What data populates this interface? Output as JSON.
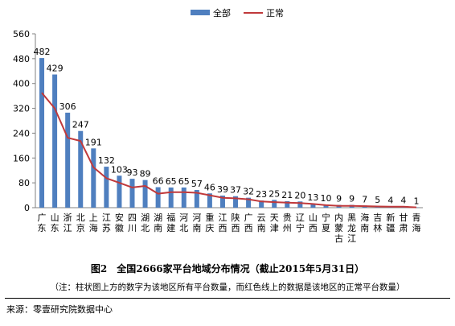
{
  "legend": {
    "bar_label": "全部",
    "line_label": "正常"
  },
  "caption": "图2　全国2666家平台地域分布情况（截止2015年5月31日）",
  "note": "（注：柱状图上方的数字为该地区所有平台数量，而红色线上的数据是该地区的正常平台数量）",
  "source": "来源：零壹研究院数据中心",
  "colors": {
    "bar": "#4f7fbf",
    "line": "#c0393b",
    "grid": "#d9d9d9"
  },
  "chart_data": {
    "type": "bar",
    "categories": [
      "广东",
      "山东",
      "浙江",
      "北京",
      "上海",
      "江苏",
      "安徽",
      "四川",
      "湖北",
      "湖南",
      "福建",
      "河北",
      "河南",
      "重庆",
      "江西",
      "陕西",
      "广西",
      "云南",
      "天津",
      "贵州",
      "辽宁",
      "山西",
      "宁夏",
      "内蒙古",
      "黑龙江",
      "海南",
      "吉林",
      "新疆",
      "甘肃",
      "青海"
    ],
    "series": [
      {
        "name": "全部",
        "type": "bar",
        "values": [
          482,
          429,
          306,
          247,
          191,
          132,
          103,
          93,
          89,
          66,
          65,
          65,
          57,
          46,
          39,
          37,
          32,
          23,
          25,
          21,
          20,
          13,
          10,
          9,
          9,
          7,
          5,
          4,
          4,
          1
        ]
      },
      {
        "name": "正常",
        "type": "line",
        "values": [
          370,
          320,
          225,
          215,
          130,
          95,
          80,
          65,
          70,
          45,
          50,
          50,
          48,
          40,
          32,
          30,
          27,
          20,
          18,
          16,
          15,
          12,
          8,
          6,
          6,
          5,
          4,
          3,
          3,
          1
        ]
      }
    ],
    "data_labels": [
      "482",
      "429",
      "306",
      "247",
      "191",
      "132",
      "103",
      "93",
      "89",
      "66",
      "65",
      "65",
      "57",
      "46",
      "39",
      "37",
      "32",
      "23",
      "25",
      "21",
      "20",
      "13",
      "10",
      "9",
      "9",
      "7",
      "5",
      "4",
      "4",
      "1"
    ],
    "ylim": [
      0,
      560
    ],
    "yticks": [
      0,
      80,
      160,
      240,
      320,
      400,
      480,
      560
    ],
    "grid": false,
    "legend_position": "top-center"
  }
}
